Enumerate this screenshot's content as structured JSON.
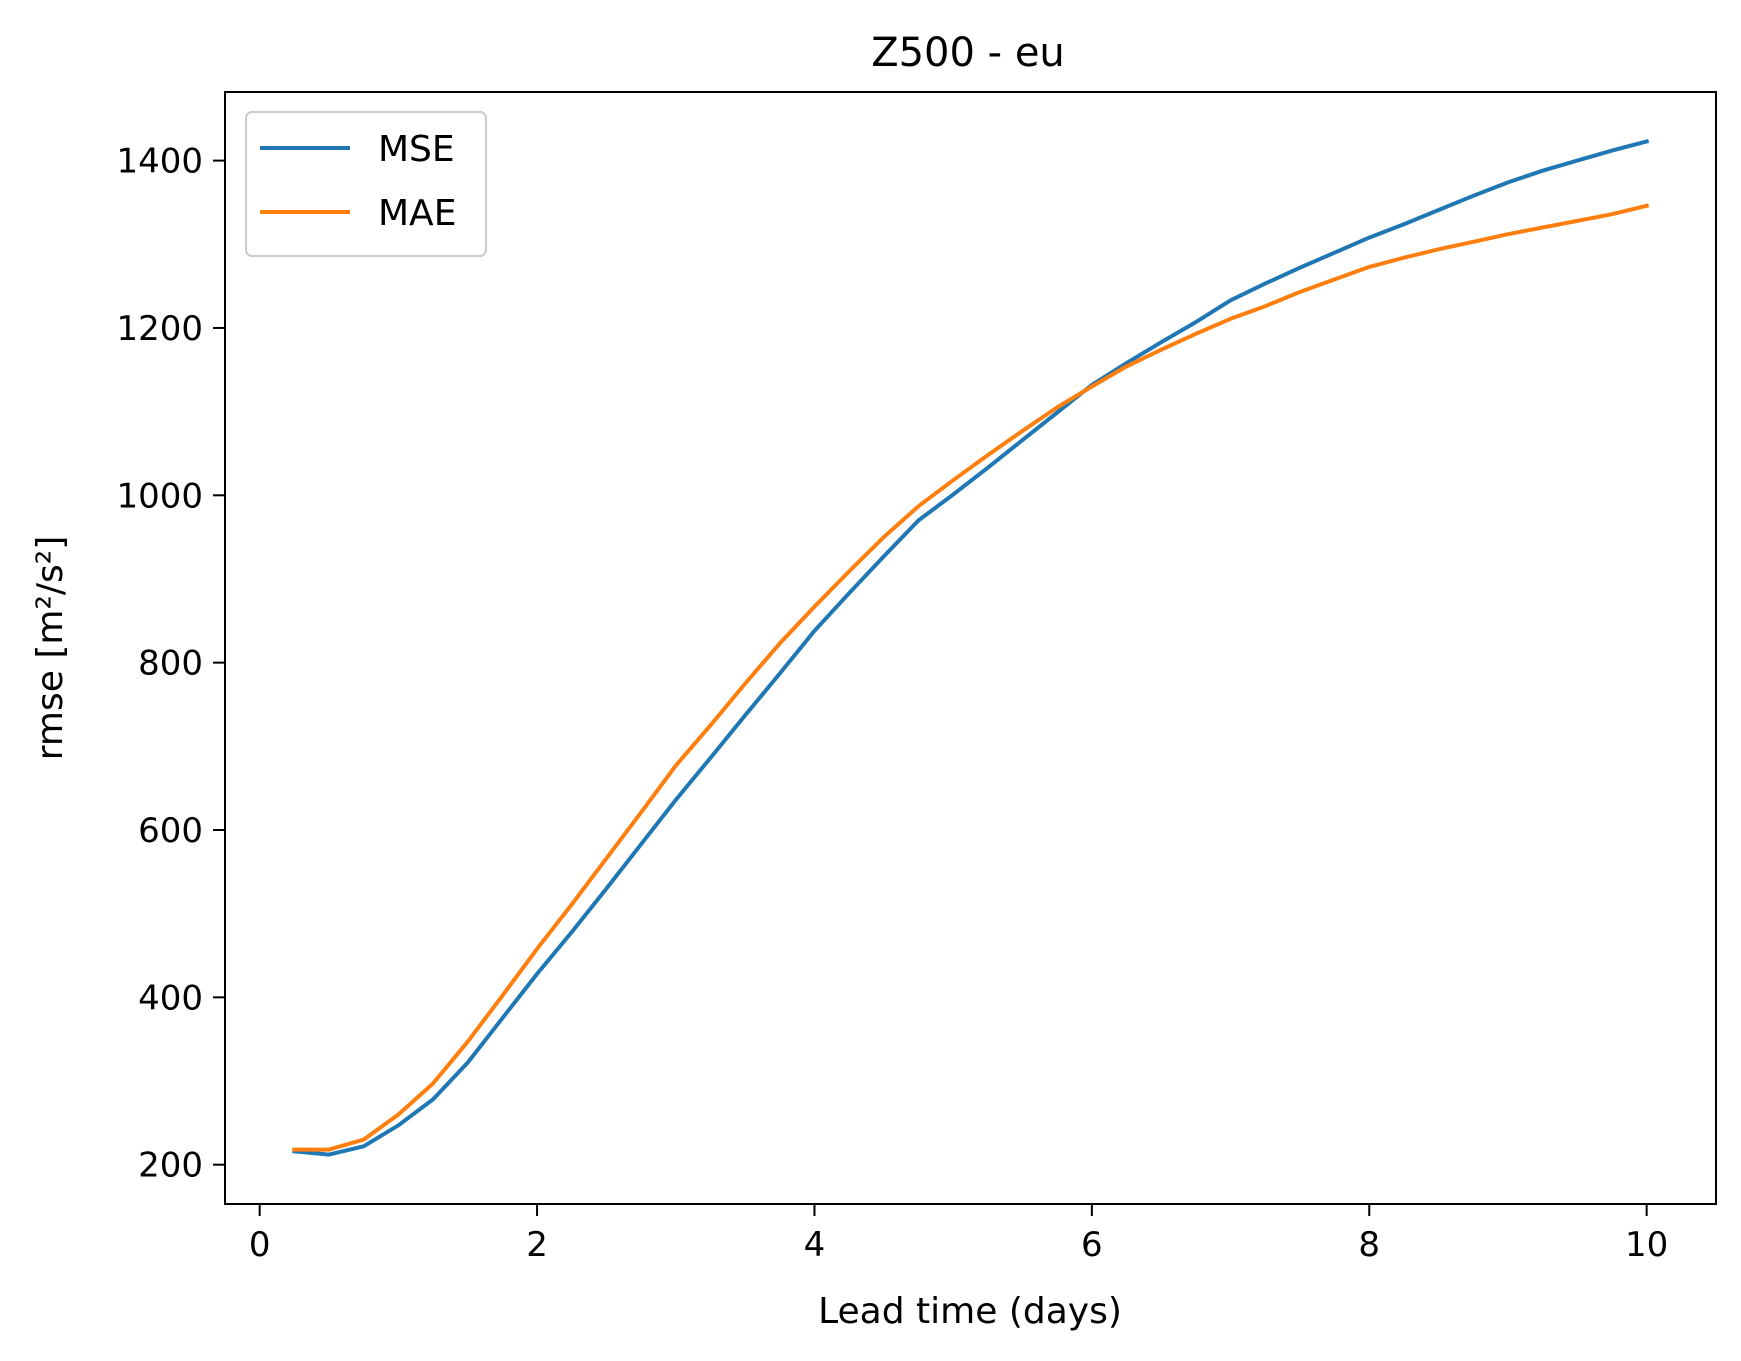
{
  "chart_data": {
    "type": "line",
    "title": "Z500 - eu",
    "xlabel": "Lead time (days)",
    "ylabel": "rmse [m²/s²]",
    "xlim": [
      -0.25,
      10.5
    ],
    "ylim": [
      153,
      1482
    ],
    "xticks": [
      0,
      2,
      4,
      6,
      8,
      10
    ],
    "yticks": [
      200,
      400,
      600,
      800,
      1000,
      1200,
      1400
    ],
    "grid": false,
    "legend_position": "top-left",
    "x": [
      0.25,
      0.5,
      0.75,
      1.0,
      1.25,
      1.5,
      1.75,
      2.0,
      2.25,
      2.5,
      2.75,
      3.0,
      3.25,
      3.5,
      3.75,
      4.0,
      4.25,
      4.5,
      4.75,
      5.0,
      5.25,
      5.5,
      5.75,
      6.0,
      6.25,
      6.5,
      6.75,
      7.0,
      7.25,
      7.5,
      7.75,
      8.0,
      8.25,
      8.5,
      8.75,
      9.0,
      9.25,
      9.5,
      9.75,
      10.0
    ],
    "series": [
      {
        "name": "MSE",
        "color": "#1f77b4",
        "values": [
          216,
          212,
          222,
          247,
          278,
          322,
          375,
          428,
          478,
          530,
          583,
          636,
          686,
          737,
          787,
          838,
          883,
          927,
          970,
          1001,
          1033,
          1066,
          1099,
          1132,
          1158,
          1183,
          1207,
          1233,
          1253,
          1272,
          1290,
          1308,
          1324,
          1341,
          1358,
          1374,
          1388,
          1400,
          1412,
          1423
        ]
      },
      {
        "name": "MAE",
        "color": "#ff7f0e",
        "values": [
          218,
          218,
          230,
          260,
          297,
          347,
          402,
          458,
          511,
          566,
          621,
          677,
          725,
          775,
          823,
          867,
          909,
          950,
          987,
          1018,
          1048,
          1077,
          1105,
          1130,
          1154,
          1174,
          1193,
          1211,
          1226,
          1243,
          1258,
          1273,
          1284,
          1294,
          1303,
          1312,
          1320,
          1328,
          1336,
          1346
        ]
      }
    ]
  }
}
